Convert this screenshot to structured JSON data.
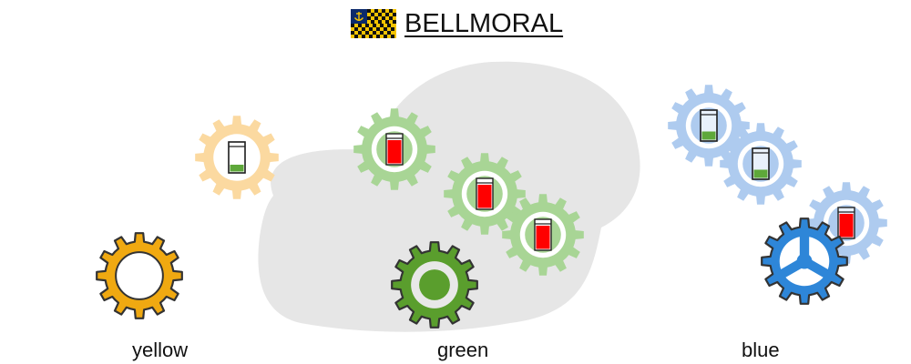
{
  "header": {
    "title": "BELLMORAL",
    "flag_icon": "checkered-anchor-flag-icon"
  },
  "groups": [
    {
      "name": "yellow",
      "label": "yellow",
      "color": "#f0a911",
      "faded_color": "#fbd9a0",
      "gears": [
        {
          "role": "faded",
          "battery_level": 0.25,
          "battery_color": "#5ea83a"
        },
        {
          "role": "main",
          "center": "ring"
        }
      ]
    },
    {
      "name": "green",
      "label": "green",
      "color": "#5a9e2d",
      "faded_color": "#a8d595",
      "gears": [
        {
          "role": "faded",
          "battery_level": 0.85,
          "battery_color": "#ff0000"
        },
        {
          "role": "faded",
          "battery_level": 0.85,
          "battery_color": "#ff0000"
        },
        {
          "role": "faded",
          "battery_level": 0.85,
          "battery_color": "#ff0000"
        },
        {
          "role": "main",
          "center": "dot"
        }
      ]
    },
    {
      "name": "blue",
      "label": "blue",
      "color": "#2e86d8",
      "faded_color": "#aecbef",
      "gears": [
        {
          "role": "faded",
          "battery_level": 0.3,
          "battery_color": "#5ea83a"
        },
        {
          "role": "faded",
          "battery_level": 0.3,
          "battery_color": "#5ea83a"
        },
        {
          "role": "faded",
          "battery_level": 0.85,
          "battery_color": "#ff0000"
        },
        {
          "role": "main",
          "center": "spokes"
        }
      ]
    }
  ],
  "cloud_color": "#e6e6e6"
}
